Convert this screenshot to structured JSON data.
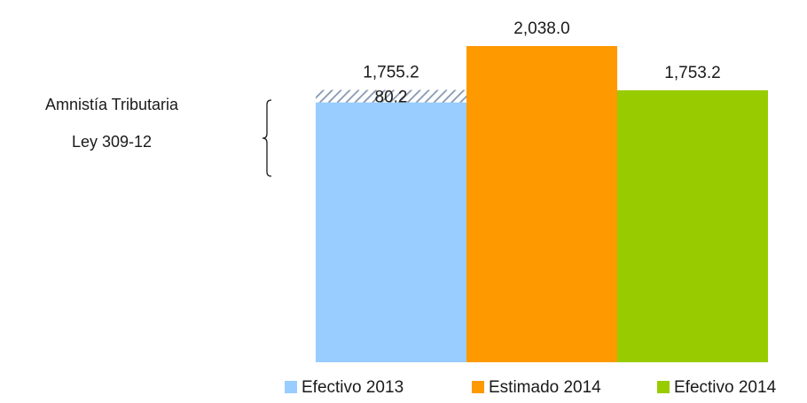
{
  "chart_data": {
    "type": "bar",
    "categories": [
      "Efectivo 2013",
      "Estimado 2014",
      "Efectivo 2014"
    ],
    "series": [
      {
        "name": "Efectivo 2013",
        "values": [
          1675.0,
          null,
          null
        ],
        "color": "#99ccff"
      },
      {
        "name": "Estimado 2014",
        "values": [
          null,
          2038.0,
          null
        ],
        "color": "#ff9900"
      },
      {
        "name": "Efectivo 2014",
        "values": [
          null,
          null,
          1753.2
        ],
        "color": "#99cc00"
      }
    ],
    "stacked_segment": {
      "category": "Efectivo 2013",
      "value": 80.2,
      "label": "80.2",
      "pattern": "diagonal-hatch",
      "color": "#8497b0"
    },
    "data_labels": [
      "1,755.2",
      "2,038.0",
      "1,753.2"
    ],
    "totals": [
      1755.2,
      2038.0,
      1753.2
    ],
    "annotation": {
      "lines": [
        "Amnistía Tributaria",
        "Ley 309-12"
      ],
      "bracket": "left-curly"
    },
    "legend": {
      "position": "bottom-right",
      "entries": [
        "Efectivo 2013",
        "Estimado 2014",
        "Efectivo 2014"
      ]
    },
    "title": "",
    "xlabel": "",
    "ylabel": "",
    "ylim": [
      0,
      2038.0
    ],
    "grid": false,
    "axes_visible": false
  }
}
